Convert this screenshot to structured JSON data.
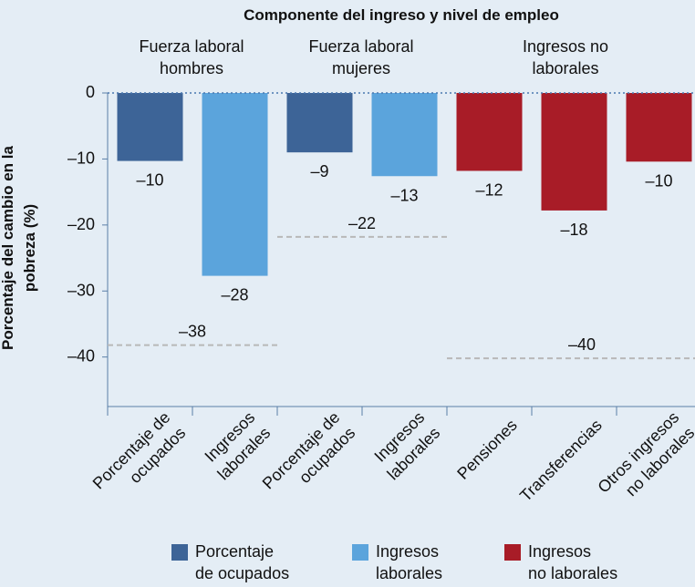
{
  "chart_data": {
    "type": "bar",
    "title": "Componente del ingreso y nivel de empleo",
    "y_label": "Porcentaje del cambio en la\npobreza (%)",
    "categories": [
      "Porcentaje de\nocupados",
      "Ingresos\nlaborales",
      "Porcentaje de\nocupados",
      "Ingresos\nlaborales",
      "Pensiones",
      "Transferencias",
      "Otros ingresos\nno laborales"
    ],
    "values": [
      -10.3,
      -27.7,
      -9,
      -12.6,
      -11.8,
      -17.8,
      -10.4
    ],
    "value_labels": [
      "–10",
      "–28",
      "–9",
      "–13",
      "–12",
      "–18",
      "–10"
    ],
    "colors": [
      "#3d6497",
      "#5ba4dc",
      "#3d6497",
      "#5ba4dc",
      "#a81c27",
      "#a81c27",
      "#a81c27"
    ],
    "groups": [
      {
        "label": "Fuerza laboral\nhombres",
        "value": -38.2,
        "value_label": "–38"
      },
      {
        "label": "Fuerza laboral\nmujeres",
        "value": -21.8,
        "value_label": "–22"
      },
      {
        "label": "Ingresos no\nlaborales",
        "value": -40.2,
        "value_label": "–40"
      }
    ],
    "legend": [
      {
        "name": "Porcentaje\nde ocupados",
        "color": "#3d6497"
      },
      {
        "name": "Ingresos\nlaborales",
        "color": "#5ba4dc"
      },
      {
        "name": "Ingresos\nno laborales",
        "color": "#a81c27"
      }
    ],
    "ylim": [
      -47.5,
      0
    ],
    "yticks": [
      {
        "value": 0,
        "label": "0"
      },
      {
        "value": -10,
        "label": "–10"
      },
      {
        "value": -20,
        "label": "–20"
      },
      {
        "value": -30,
        "label": "–30"
      },
      {
        "value": -40,
        "label": "–40"
      }
    ]
  }
}
